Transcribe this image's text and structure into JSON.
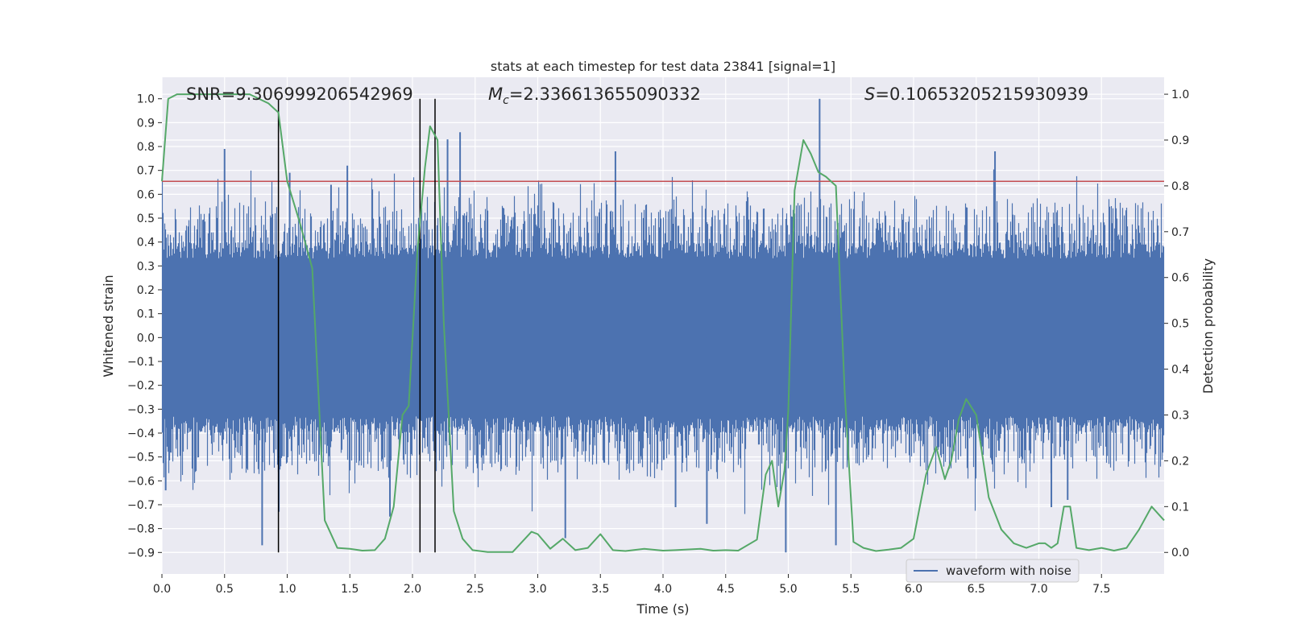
{
  "chart_data": {
    "type": "line",
    "title": "stats at each timestep for test data 23841 [signal=1]",
    "xlabel": "Time (s)",
    "ylabel": "Whitened strain",
    "y2label": "Detection probability",
    "xlim": [
      0.0,
      8.0
    ],
    "ylim": [
      -0.99,
      1.09
    ],
    "y2lim": [
      -0.047,
      1.037
    ],
    "xticks": [
      0.0,
      0.5,
      1.0,
      1.5,
      2.0,
      2.5,
      3.0,
      3.5,
      4.0,
      4.5,
      5.0,
      5.5,
      6.0,
      6.5,
      7.0,
      7.5
    ],
    "xtick_labels": [
      "0.0",
      "0.5",
      "1.0",
      "1.5",
      "2.0",
      "2.5",
      "3.0",
      "3.5",
      "4.0",
      "4.5",
      "5.0",
      "5.5",
      "6.0",
      "6.5",
      "7.0",
      "7.5"
    ],
    "yticks": [
      -0.9,
      -0.8,
      -0.7,
      -0.6,
      -0.5,
      -0.4,
      -0.3,
      -0.2,
      -0.1,
      0.0,
      0.1,
      0.2,
      0.3,
      0.4,
      0.5,
      0.6,
      0.7,
      0.8,
      0.9,
      1.0
    ],
    "ytick_labels": [
      "−0.9",
      "−0.8",
      "−0.7",
      "−0.6",
      "−0.5",
      "−0.4",
      "−0.3",
      "−0.2",
      "−0.1",
      "0.0",
      "0.1",
      "0.2",
      "0.3",
      "0.4",
      "0.5",
      "0.6",
      "0.7",
      "0.8",
      "0.9",
      "1.0"
    ],
    "y2ticks": [
      0.0,
      0.1,
      0.2,
      0.3,
      0.4,
      0.5,
      0.6,
      0.7,
      0.8,
      0.9,
      1.0
    ],
    "y2tick_labels": [
      "0.0",
      "0.1",
      "0.2",
      "0.3",
      "0.4",
      "0.5",
      "0.6",
      "0.7",
      "0.8",
      "0.9",
      "1.0"
    ],
    "grid": true,
    "legend": {
      "placement": "lower-right",
      "entries": [
        {
          "label": "waveform with noise",
          "color": "#4c72b0"
        }
      ]
    },
    "annotations": {
      "snr": {
        "prefix": "SNR=",
        "value": "9.306999206542969"
      },
      "mc": {
        "symbol": "M",
        "sub": "c",
        "value": "=2.336613655090332"
      },
      "s": {
        "symbol": "S",
        "value": "=0.10653205215930939"
      }
    },
    "threshold_line": {
      "y": 0.81,
      "color": "#c44e52"
    },
    "vertical_lines": [
      0.93,
      2.06,
      2.18
    ],
    "vertical_line_range": [
      -0.9,
      1.0
    ],
    "waveform": {
      "name": "waveform with noise",
      "color": "#4c72b0",
      "core_amplitude": [
        -0.33,
        0.33
      ],
      "spikes": [
        {
          "x": 0.03,
          "y": -0.64
        },
        {
          "x": 0.5,
          "y": 0.79
        },
        {
          "x": 0.8,
          "y": -0.87
        },
        {
          "x": 1.02,
          "y": 0.69
        },
        {
          "x": 1.35,
          "y": 0.64
        },
        {
          "x": 1.48,
          "y": 0.72
        },
        {
          "x": 1.82,
          "y": -0.75
        },
        {
          "x": 2.28,
          "y": 0.83
        },
        {
          "x": 2.38,
          "y": 0.86
        },
        {
          "x": 3.22,
          "y": -0.84
        },
        {
          "x": 3.62,
          "y": 0.78
        },
        {
          "x": 4.1,
          "y": -0.71
        },
        {
          "x": 4.35,
          "y": -0.78
        },
        {
          "x": 4.98,
          "y": -0.9
        },
        {
          "x": 5.25,
          "y": 1.0
        },
        {
          "x": 5.38,
          "y": -0.87
        },
        {
          "x": 6.65,
          "y": 0.78
        },
        {
          "x": 7.1,
          "y": -0.71
        },
        {
          "x": 7.23,
          "y": -0.68
        }
      ]
    },
    "detection_probability": {
      "color": "#55a868",
      "x": [
        0.0,
        0.05,
        0.12,
        0.3,
        0.5,
        0.7,
        0.85,
        0.93,
        1.0,
        1.1,
        1.2,
        1.3,
        1.4,
        1.5,
        1.6,
        1.7,
        1.78,
        1.85,
        1.92,
        1.97,
        2.04,
        2.1,
        2.14,
        2.2,
        2.25,
        2.33,
        2.4,
        2.48,
        2.6,
        2.8,
        2.95,
        3.0,
        3.1,
        3.2,
        3.3,
        3.4,
        3.5,
        3.6,
        3.7,
        3.85,
        4.0,
        4.1,
        4.3,
        4.4,
        4.5,
        4.6,
        4.75,
        4.82,
        4.87,
        4.92,
        4.97,
        5.0,
        5.05,
        5.12,
        5.18,
        5.24,
        5.3,
        5.38,
        5.45,
        5.52,
        5.6,
        5.7,
        5.8,
        5.9,
        6.0,
        6.1,
        6.18,
        6.25,
        6.3,
        6.36,
        6.42,
        6.5,
        6.6,
        6.7,
        6.8,
        6.9,
        7.0,
        7.05,
        7.1,
        7.15,
        7.2,
        7.25,
        7.3,
        7.4,
        7.5,
        7.6,
        7.7,
        7.8,
        7.9,
        8.0
      ],
      "y": [
        0.81,
        0.99,
        1.0,
        1.0,
        1.0,
        1.0,
        0.98,
        0.96,
        0.81,
        0.72,
        0.62,
        0.07,
        0.01,
        0.008,
        0.004,
        0.005,
        0.03,
        0.1,
        0.3,
        0.32,
        0.66,
        0.84,
        0.93,
        0.9,
        0.5,
        0.09,
        0.03,
        0.005,
        0.001,
        0.001,
        0.045,
        0.04,
        0.008,
        0.03,
        0.005,
        0.01,
        0.04,
        0.005,
        0.003,
        0.008,
        0.004,
        0.005,
        0.008,
        0.004,
        0.005,
        0.004,
        0.028,
        0.17,
        0.2,
        0.1,
        0.18,
        0.31,
        0.79,
        0.9,
        0.87,
        0.83,
        0.82,
        0.8,
        0.35,
        0.023,
        0.01,
        0.003,
        0.006,
        0.01,
        0.03,
        0.17,
        0.23,
        0.16,
        0.2,
        0.29,
        0.335,
        0.3,
        0.12,
        0.05,
        0.02,
        0.01,
        0.02,
        0.02,
        0.01,
        0.02,
        0.1,
        0.1,
        0.01,
        0.005,
        0.01,
        0.004,
        0.01,
        0.05,
        0.1,
        0.07
      ]
    }
  }
}
